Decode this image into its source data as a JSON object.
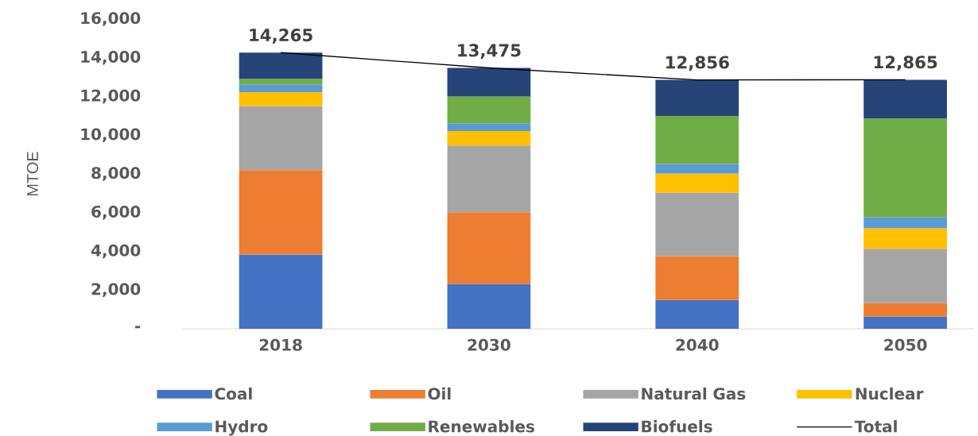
{
  "chart_data": {
    "type": "bar",
    "stacked": true,
    "ylabel": "MTOE",
    "categories": [
      "2018",
      "2030",
      "2040",
      "2050"
    ],
    "series": [
      {
        "name": "Coal",
        "color": "#4472c4",
        "values": [
          3840,
          2320,
          1490,
          640
        ]
      },
      {
        "name": "Oil",
        "color": "#ed7d31",
        "values": [
          4350,
          3700,
          2260,
          680
        ]
      },
      {
        "name": "Natural Gas",
        "color": "#a5a5a5",
        "values": [
          3310,
          3450,
          3290,
          2810
        ]
      },
      {
        "name": "Nuclear",
        "color": "#ffc000",
        "values": [
          730,
          750,
          980,
          1060
        ]
      },
      {
        "name": "Hydro",
        "color": "#5b9bd5",
        "values": [
          400,
          400,
          490,
          560
        ]
      },
      {
        "name": "Renewables",
        "color": "#70ad47",
        "values": [
          280,
          1380,
          2480,
          5110
        ]
      },
      {
        "name": "Biofuels",
        "color": "#264478",
        "values": [
          1360,
          1480,
          1870,
          2000
        ]
      },
      {
        "name": "Total",
        "type": "line",
        "color": "#000000",
        "values": [
          14265,
          13475,
          12856,
          12865
        ],
        "value_labels": [
          "14,265",
          "13,475",
          "12,856",
          "12,865"
        ]
      }
    ],
    "ylim": [
      0,
      16000
    ],
    "yticks": [
      {
        "value": 0,
        "label": "-"
      },
      {
        "value": 2000,
        "label": "2,000"
      },
      {
        "value": 4000,
        "label": "4,000"
      },
      {
        "value": 6000,
        "label": "6,000"
      },
      {
        "value": 8000,
        "label": "8,000"
      },
      {
        "value": 10000,
        "label": "10,000"
      },
      {
        "value": 12000,
        "label": "12,000"
      },
      {
        "value": 14000,
        "label": "14,000"
      },
      {
        "value": 16000,
        "label": "16,000"
      }
    ],
    "grid": false,
    "legend": "bottom"
  }
}
